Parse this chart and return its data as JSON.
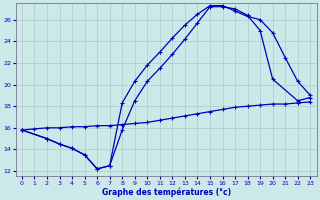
{
  "xlabel": "Graphe des températures (°c)",
  "background_color": "#cce8e8",
  "grid_color": "#aacccc",
  "line_color": "#0000bb",
  "ylim": [
    11.5,
    27.5
  ],
  "xlim": [
    -0.5,
    23.5
  ],
  "yticks": [
    12,
    14,
    16,
    18,
    20,
    22,
    24,
    26
  ],
  "xticks": [
    0,
    1,
    2,
    3,
    4,
    5,
    6,
    7,
    8,
    9,
    10,
    11,
    12,
    13,
    14,
    15,
    16,
    17,
    18,
    19,
    20,
    21,
    22,
    23
  ],
  "line1_x": [
    0,
    1,
    2,
    3,
    4,
    5,
    6,
    7,
    8,
    9,
    10,
    11,
    12,
    13,
    14,
    15,
    16,
    17,
    18,
    19,
    20,
    21,
    22,
    23
  ],
  "line1_y": [
    15.8,
    15.9,
    16.0,
    16.0,
    16.1,
    16.1,
    16.2,
    16.2,
    16.3,
    16.4,
    16.5,
    16.7,
    16.9,
    17.1,
    17.3,
    17.5,
    17.7,
    17.9,
    18.0,
    18.1,
    18.2,
    18.2,
    18.3,
    18.4
  ],
  "line2_x": [
    0,
    2,
    3,
    4,
    5,
    6,
    7,
    8,
    9,
    10,
    11,
    12,
    13,
    14,
    15,
    16,
    17,
    18,
    19,
    20,
    22,
    23
  ],
  "line2_y": [
    15.8,
    15.0,
    14.5,
    14.1,
    13.5,
    12.2,
    12.5,
    15.8,
    18.5,
    20.3,
    21.5,
    22.8,
    24.2,
    25.7,
    27.2,
    27.2,
    27.0,
    26.4,
    25.0,
    20.5,
    18.5,
    18.8
  ],
  "line3_x": [
    0,
    2,
    3,
    4,
    5,
    6,
    7,
    8,
    9,
    10,
    11,
    12,
    13,
    14,
    15,
    16,
    17,
    18,
    19,
    20,
    21,
    22,
    23
  ],
  "line3_y": [
    15.8,
    15.0,
    14.5,
    14.1,
    13.5,
    12.2,
    12.5,
    18.3,
    20.3,
    21.8,
    23.0,
    24.3,
    25.5,
    26.5,
    27.3,
    27.3,
    26.8,
    26.3,
    26.0,
    24.8,
    22.5,
    20.3,
    19.0
  ]
}
